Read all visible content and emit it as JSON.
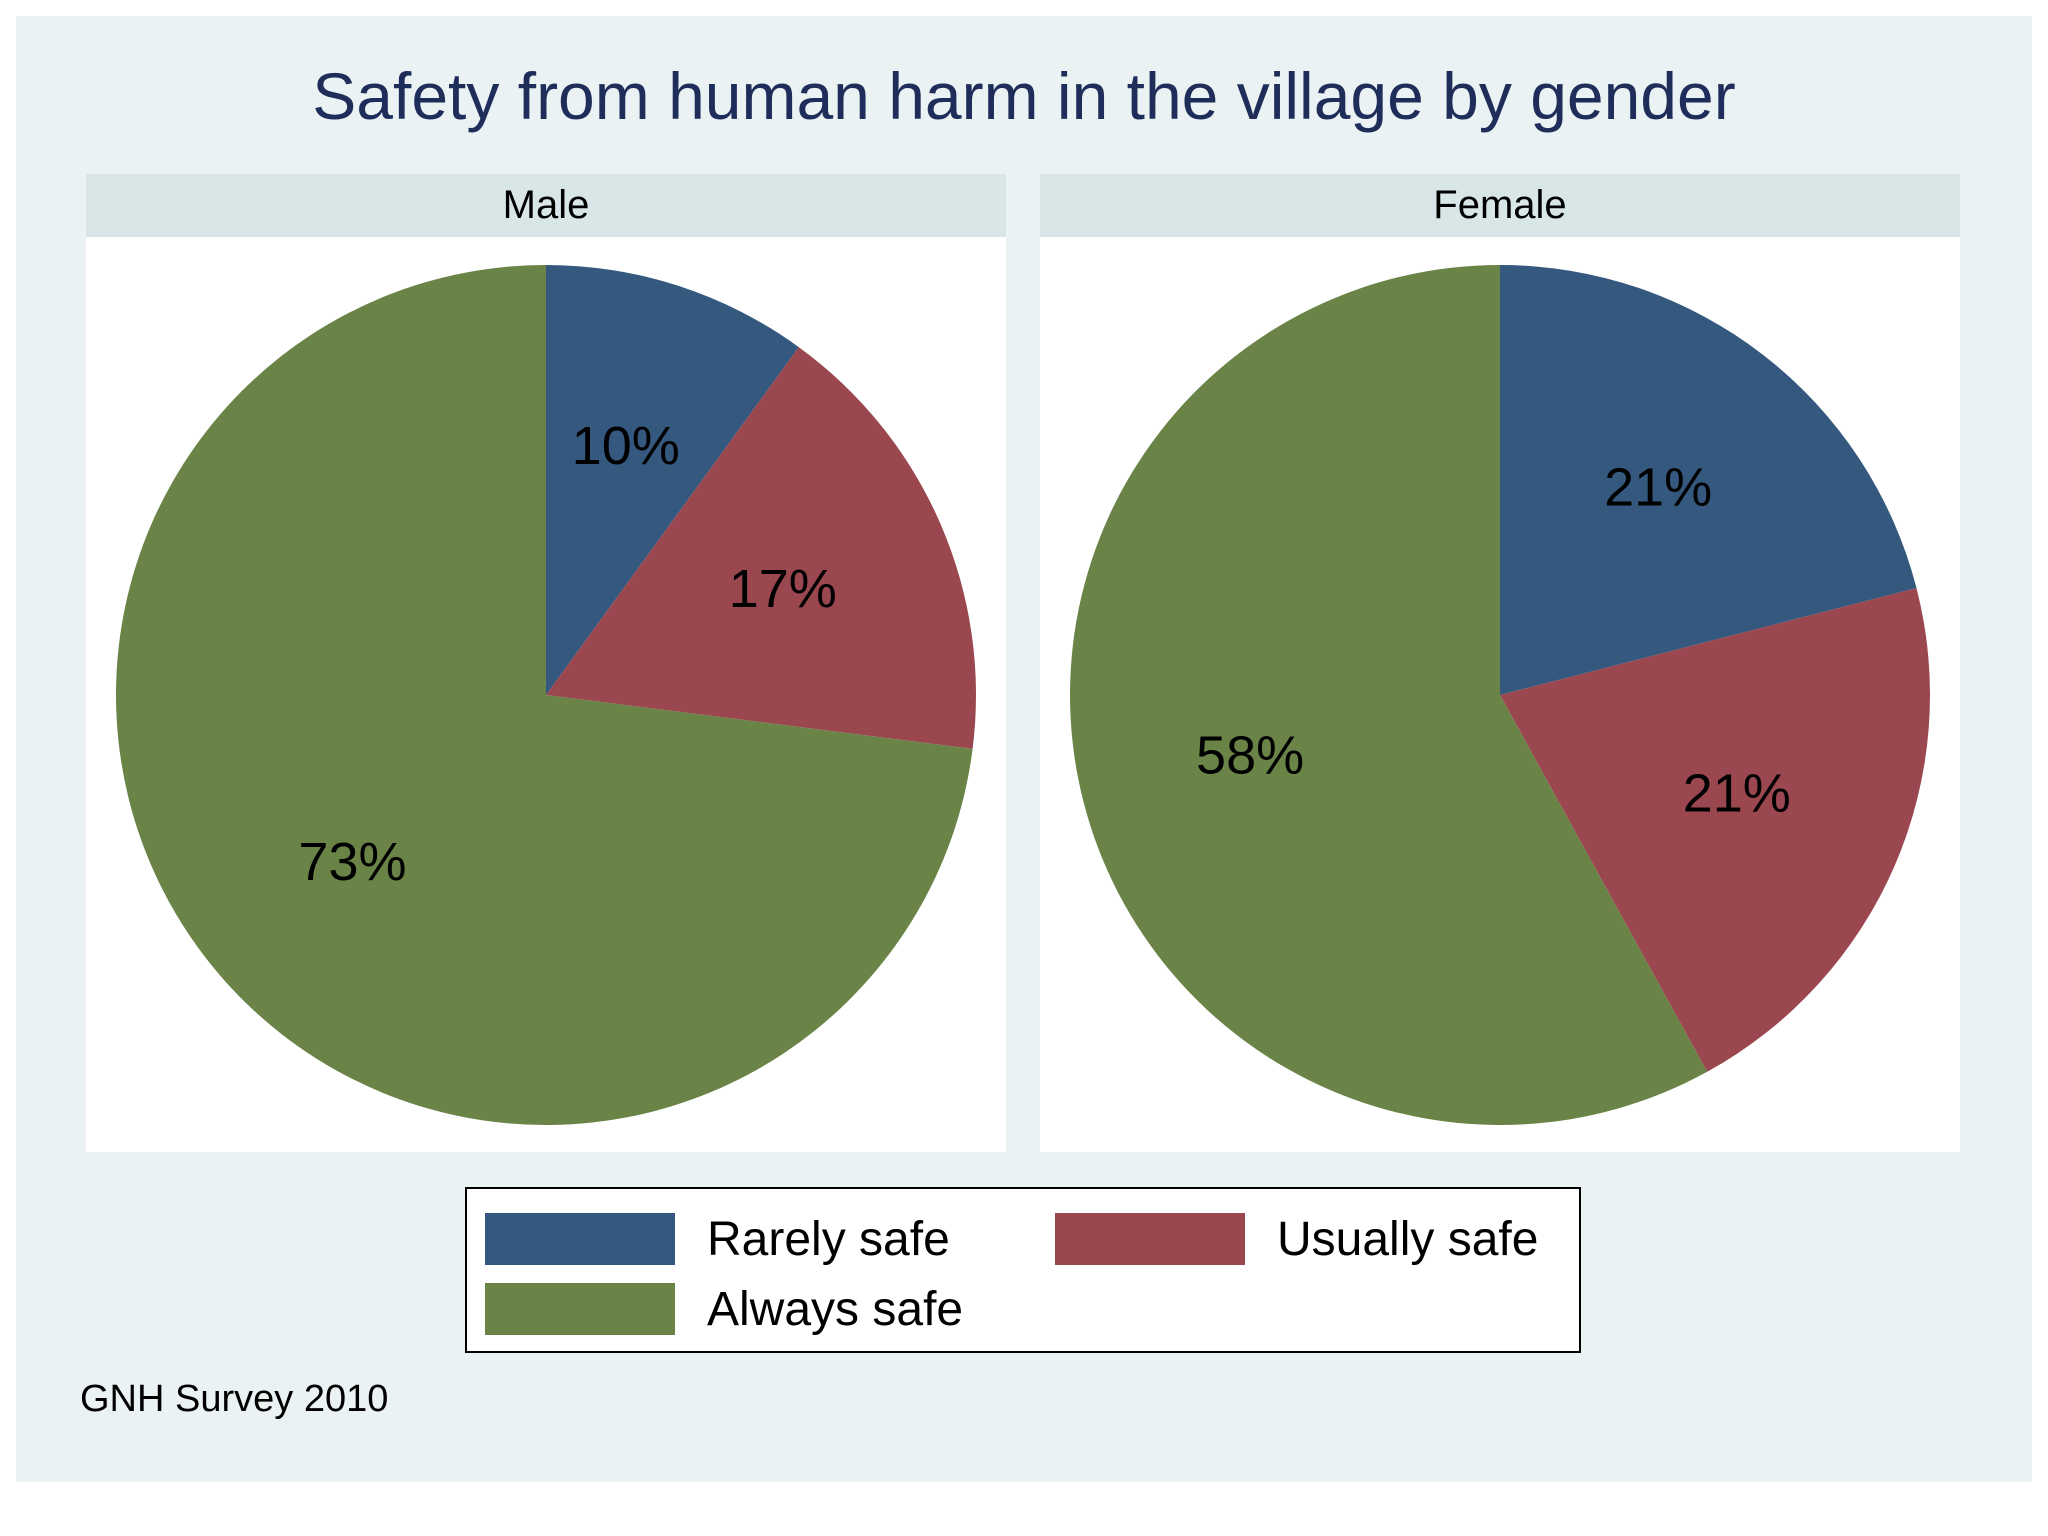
{
  "chart_data": {
    "type": "pie",
    "title": "Safety from human harm in the village by gender",
    "categories": [
      "Rarely safe",
      "Usually safe",
      "Always safe"
    ],
    "colors": [
      "#34587e",
      "#9a4750",
      "#6a8347"
    ],
    "panels": [
      {
        "name": "Male",
        "values": [
          10,
          17,
          73
        ],
        "labels": [
          "10%",
          "17%",
          "73%"
        ]
      },
      {
        "name": "Female",
        "values": [
          21,
          21,
          58
        ],
        "labels": [
          "21%",
          "21%",
          "58%"
        ]
      }
    ],
    "legend_position": "bottom",
    "note": "GNH Survey 2010"
  }
}
